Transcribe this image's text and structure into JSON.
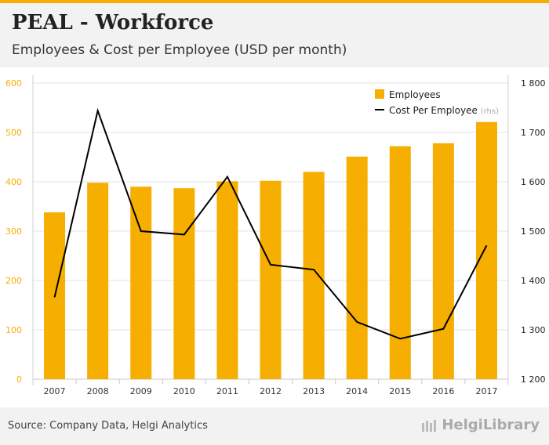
{
  "header": {
    "title": "PEAL - Workforce",
    "subtitle": "Employees & Cost per Employee (USD per month)"
  },
  "footer": {
    "source": "Source: Company Data, Helgi Analytics",
    "brand": "HelgiLibrary"
  },
  "colors": {
    "bar": "#f6ae00",
    "line": "#000000",
    "left_axis": "#f6ae00",
    "right_axis": "#222222"
  },
  "chart_data": {
    "type": "bar+line",
    "categories": [
      "2007",
      "2008",
      "2009",
      "2010",
      "2011",
      "2012",
      "2013",
      "2014",
      "2015",
      "2016",
      "2017"
    ],
    "series": [
      {
        "name": "Employees",
        "type": "bar",
        "axis": "left",
        "values": [
          338,
          398,
          390,
          387,
          401,
          402,
          420,
          451,
          472,
          478,
          521
        ]
      },
      {
        "name": "Cost Per Employee",
        "name_suffix": "(rhs)",
        "type": "line",
        "axis": "right",
        "values": [
          1366,
          1744,
          1500,
          1493,
          1610,
          1432,
          1422,
          1316,
          1282,
          1302,
          1471
        ]
      }
    ],
    "left_axis": {
      "min": 0,
      "max": 600,
      "ticks": [
        "0",
        "100",
        "200",
        "300",
        "400",
        "500",
        "600"
      ]
    },
    "right_axis": {
      "min": 1200,
      "max": 1800,
      "ticks": [
        "1 200",
        "1 300",
        "1 400",
        "1 500",
        "1 600",
        "1 700",
        "1 800"
      ]
    },
    "legend": {
      "position": "top-right"
    },
    "grid": true
  }
}
